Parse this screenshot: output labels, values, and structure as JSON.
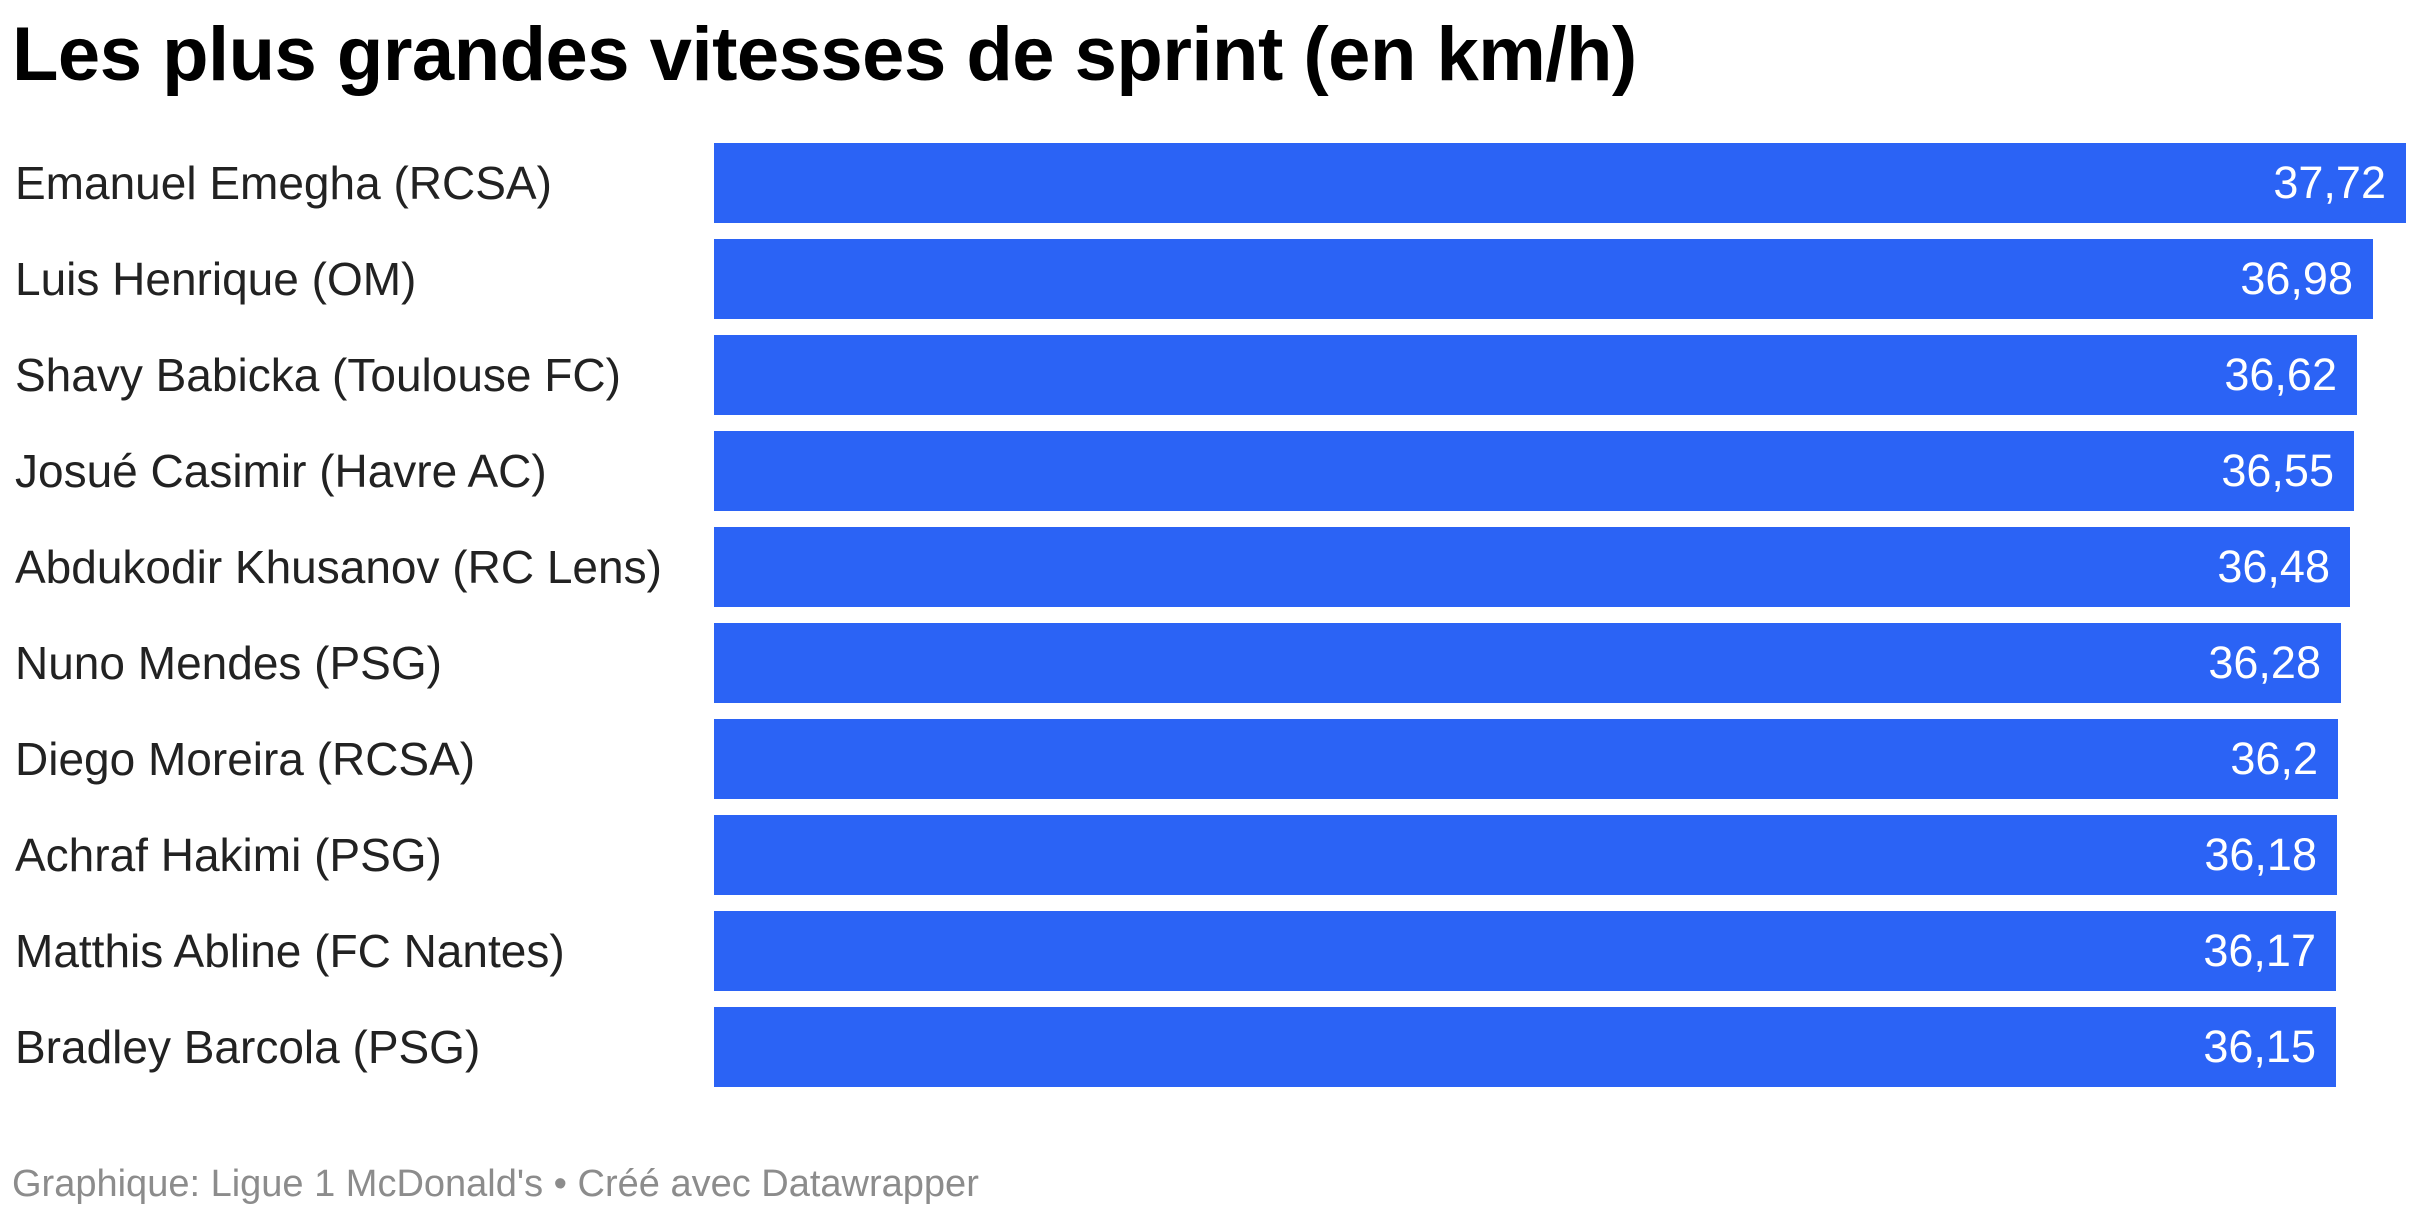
{
  "chart_data": {
    "type": "bar",
    "orientation": "horizontal",
    "title": "Les plus grandes vitesses de sprint (en km/h)",
    "categories": [
      "Emanuel Emegha (RCSA)",
      "Luis Henrique (OM)",
      "Shavy Babicka (Toulouse FC)",
      "Josué Casimir (Havre AC)",
      "Abdukodir Khusanov (RC Lens)",
      "Nuno Mendes (PSG)",
      "Diego Moreira (RCSA)",
      "Achraf Hakimi (PSG)",
      "Matthis Abline (FC Nantes)",
      "Bradley Barcola (PSG)"
    ],
    "values": [
      37.72,
      36.98,
      36.62,
      36.55,
      36.48,
      36.28,
      36.2,
      36.18,
      36.17,
      36.15
    ],
    "value_labels": [
      "37,72",
      "36,98",
      "36,62",
      "36,55",
      "36,48",
      "36,28",
      "36,2",
      "36,18",
      "36,17",
      "36,15"
    ],
    "xlim": [
      0,
      37.72
    ],
    "grid": false,
    "legend": "none",
    "bar_color": "#2b63f5",
    "value_label_color": "#ffffff"
  },
  "footer": {
    "source": "Graphique: Ligue 1 McDonald's • Créé avec Datawrapper"
  }
}
